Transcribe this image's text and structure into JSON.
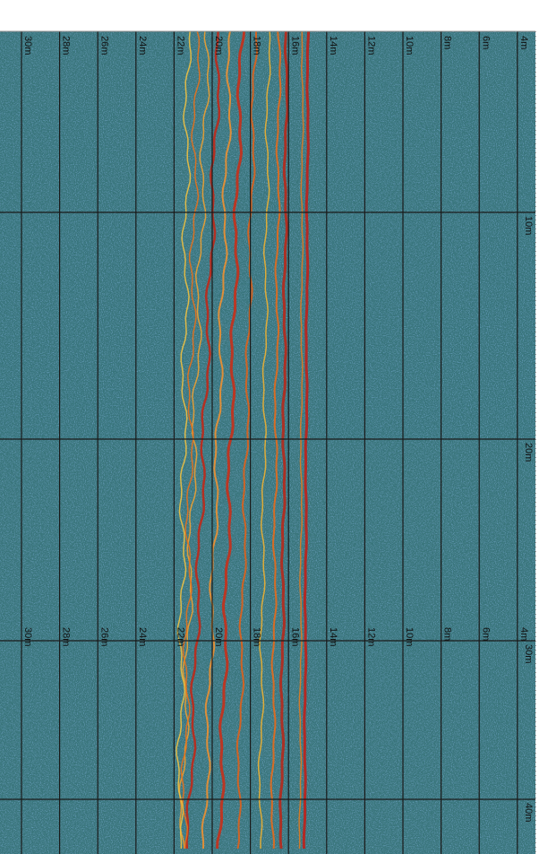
{
  "top_labels": [
    "30m",
    "28m",
    "26m",
    "24m",
    "22m",
    "20m",
    "18m",
    "16m",
    "14m",
    "12m",
    "10m",
    "8m",
    "6m",
    "4m"
  ],
  "inner_labels": [
    "30m",
    "28m",
    "26m",
    "24m",
    "22m",
    "20m",
    "18m",
    "16m",
    "14m",
    "12m",
    "10m",
    "8m",
    "6m",
    "4m"
  ],
  "right_labels": [
    "10m",
    "20m",
    "30m",
    "40m"
  ]
}
